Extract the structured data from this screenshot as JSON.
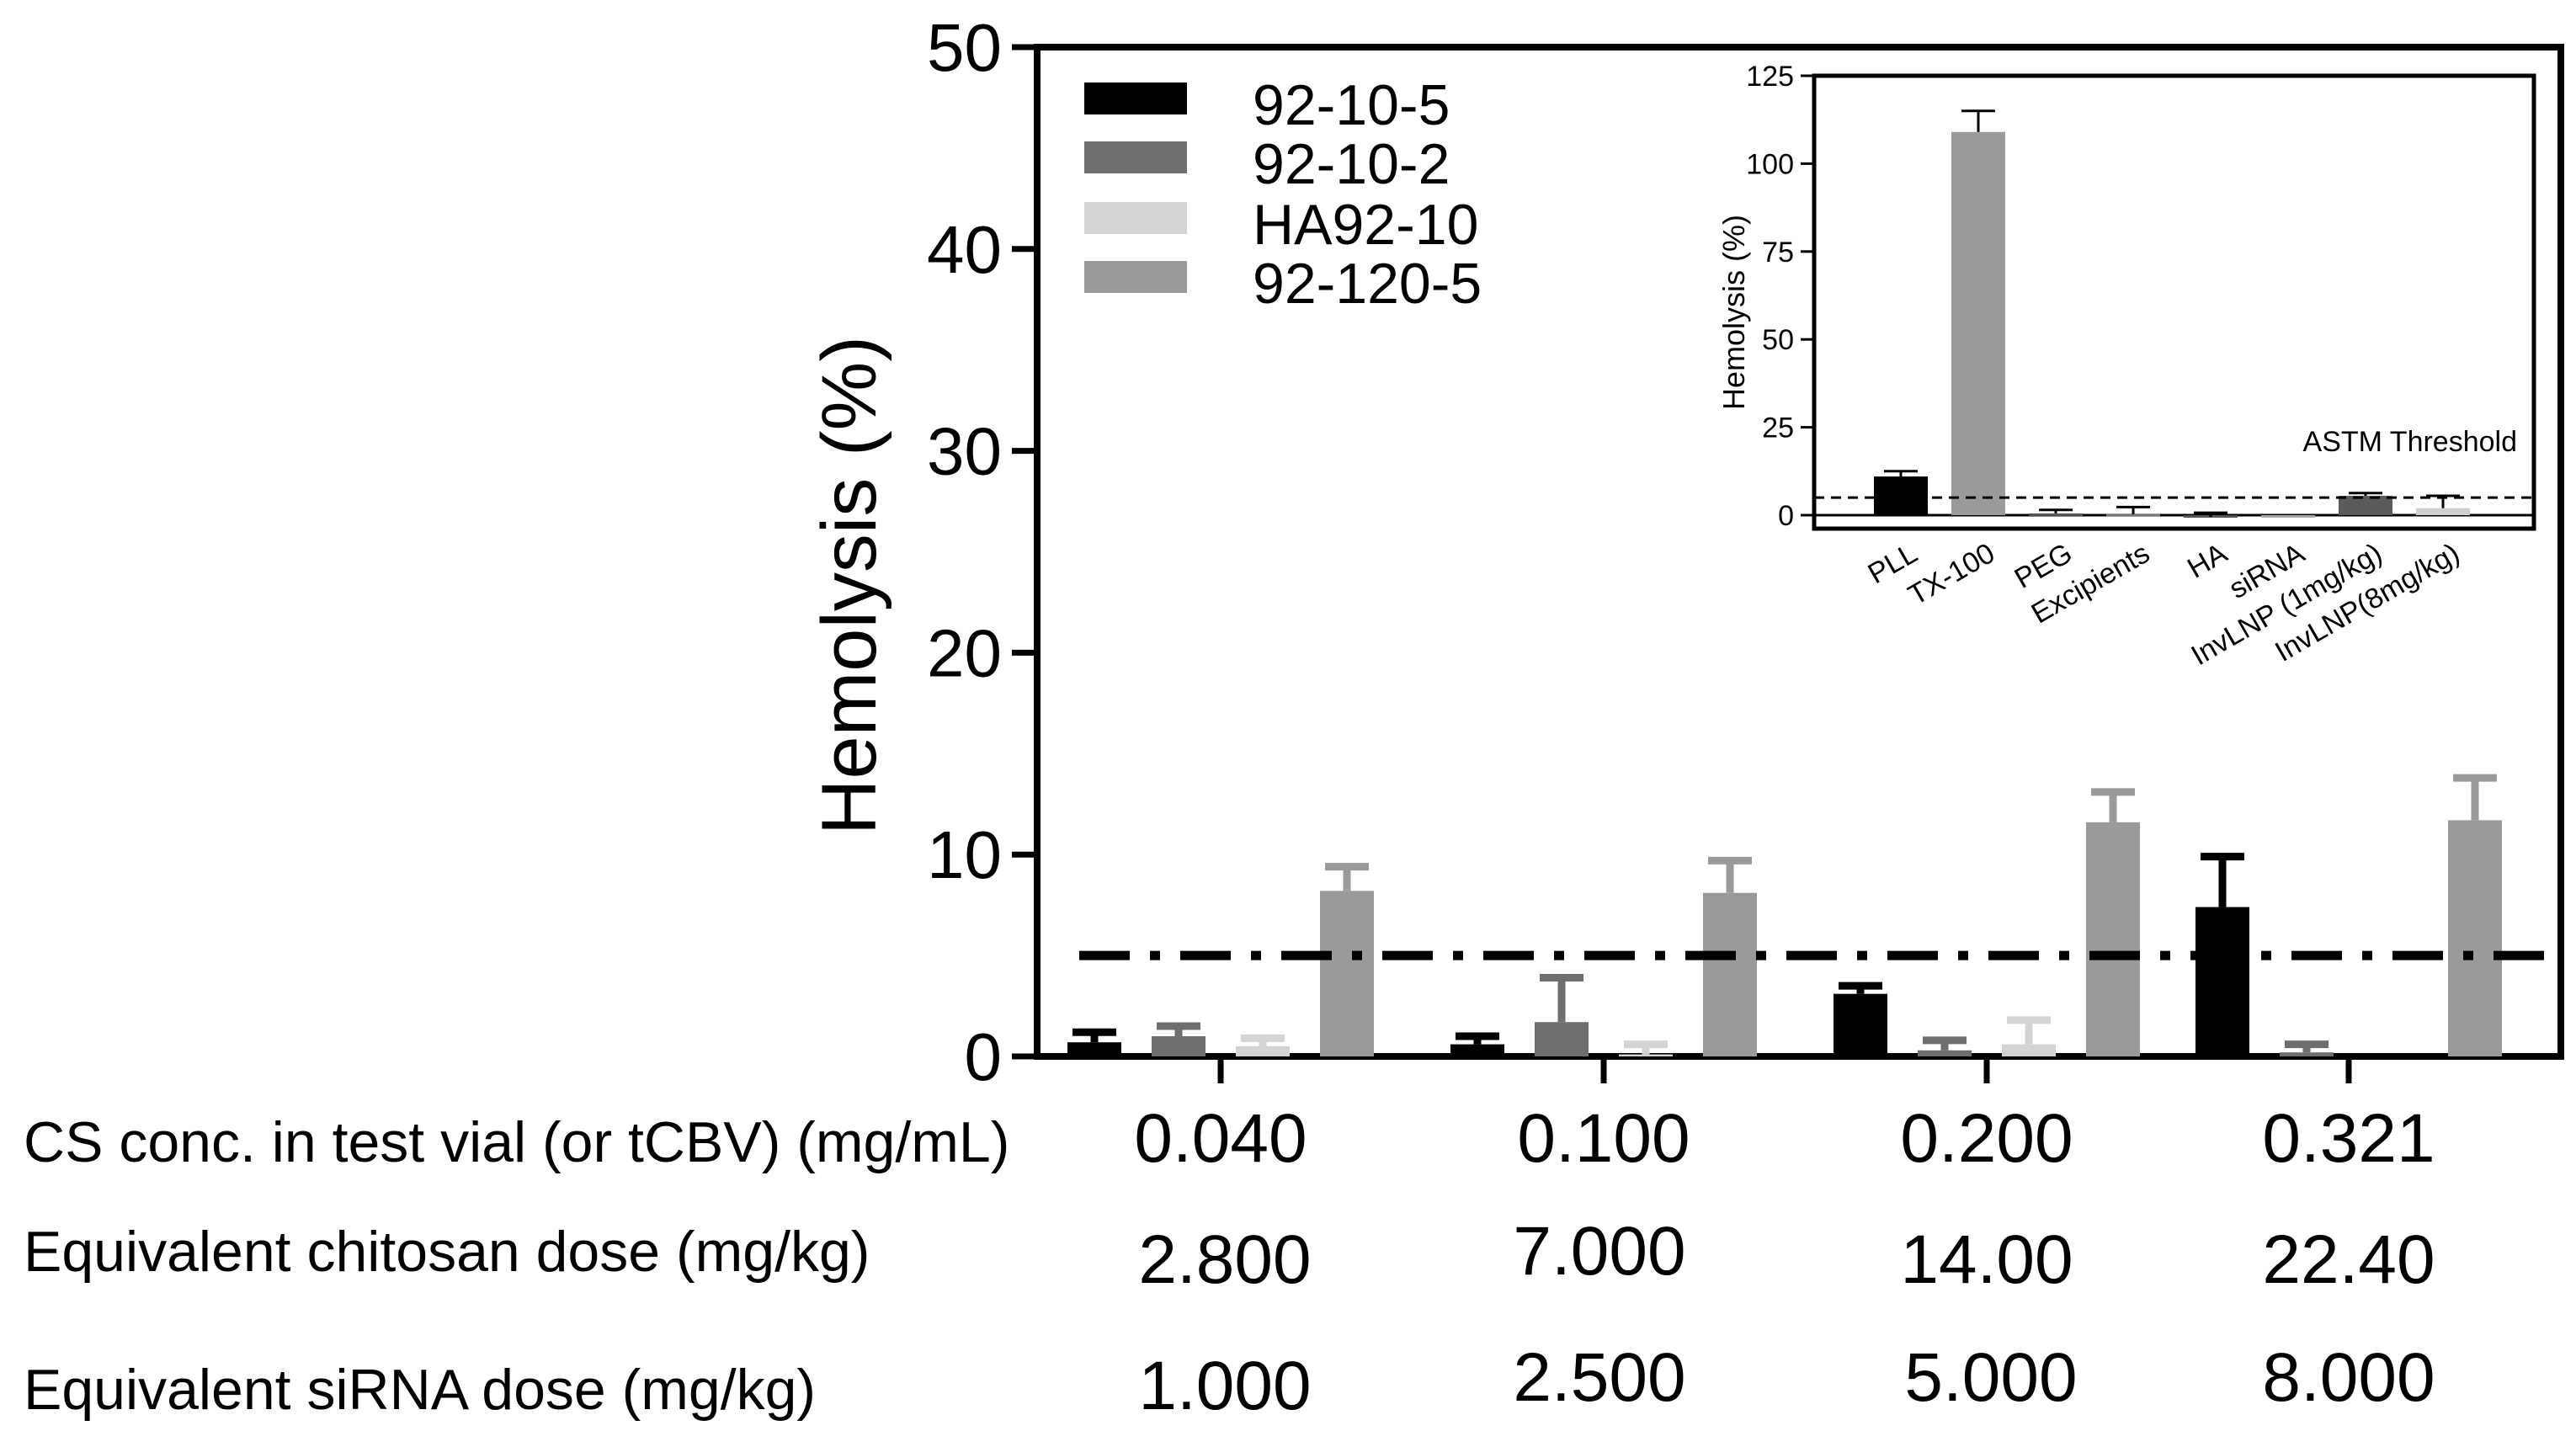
{
  "chart_data": [
    {
      "type": "bar",
      "ylabel": "Hemolysis (%)",
      "ylim": [
        0,
        50
      ],
      "yticks": [
        0,
        10,
        20,
        30,
        40,
        50
      ],
      "threshold": 5,
      "series": [
        {
          "name": "92-10-5",
          "color": "#000000",
          "values": [
            0.7,
            0.6,
            3.1,
            7.4
          ],
          "errors": [
            0.5,
            0.4,
            0.4,
            2.5
          ]
        },
        {
          "name": "92-10-2",
          "color": "#6e6e6e",
          "values": [
            1.0,
            1.7,
            0.3,
            0.2
          ],
          "errors": [
            0.5,
            2.2,
            0.5,
            0.4
          ]
        },
        {
          "name": "HA92-10",
          "color": "#d4d4d4",
          "values": [
            0.5,
            0.1,
            0.6,
            0.0
          ],
          "errors": [
            0.4,
            0.5,
            1.2,
            0.0
          ]
        },
        {
          "name": "92-120-5",
          "color": "#9a9a9c",
          "values": [
            8.2,
            8.1,
            11.6,
            11.7
          ],
          "errors": [
            1.2,
            1.6,
            1.5,
            2.1
          ]
        }
      ],
      "categories": [
        "0.040",
        "0.100",
        "0.200",
        "0.321"
      ],
      "rows": [
        {
          "label": "CS conc. in test vial (or tCBV) (mg/mL)",
          "values": [
            "0.040",
            "0.100",
            "0.200",
            "0.321"
          ]
        },
        {
          "label": "Equivalent chitosan dose (mg/kg)",
          "values": [
            "2.800",
            "7.000",
            "14.00",
            "22.40"
          ]
        },
        {
          "label": "Equivalent siRNA dose (mg/kg)",
          "values": [
            "1.000",
            "2.500",
            "5.000",
            "8.000"
          ]
        }
      ]
    },
    {
      "type": "bar",
      "ylabel": "Hemolysis (%)",
      "ylim": [
        0,
        125
      ],
      "yticks": [
        0,
        25,
        50,
        75,
        100,
        125
      ],
      "threshold": 5,
      "threshold_label": "ASTM  Threshold",
      "categories": [
        "PLL",
        "TX-100",
        "PEG",
        "Excipients",
        "HA",
        "siRNA",
        "InvLNP (1mg/kg)",
        "InvLNP(8mg/kg)"
      ],
      "values": [
        11,
        109,
        0.5,
        0.3,
        -0.5,
        -0.5,
        5.5,
        2.0
      ],
      "errors": [
        1.5,
        6,
        1.0,
        2.0,
        1.2,
        0.0,
        0.8,
        3.5
      ],
      "colors": [
        "#000000",
        "#9a9a9c",
        "#555555",
        "#777777",
        "#555555",
        "#aaaaaa",
        "#5a5a5a",
        "#cfcfcf"
      ]
    }
  ]
}
